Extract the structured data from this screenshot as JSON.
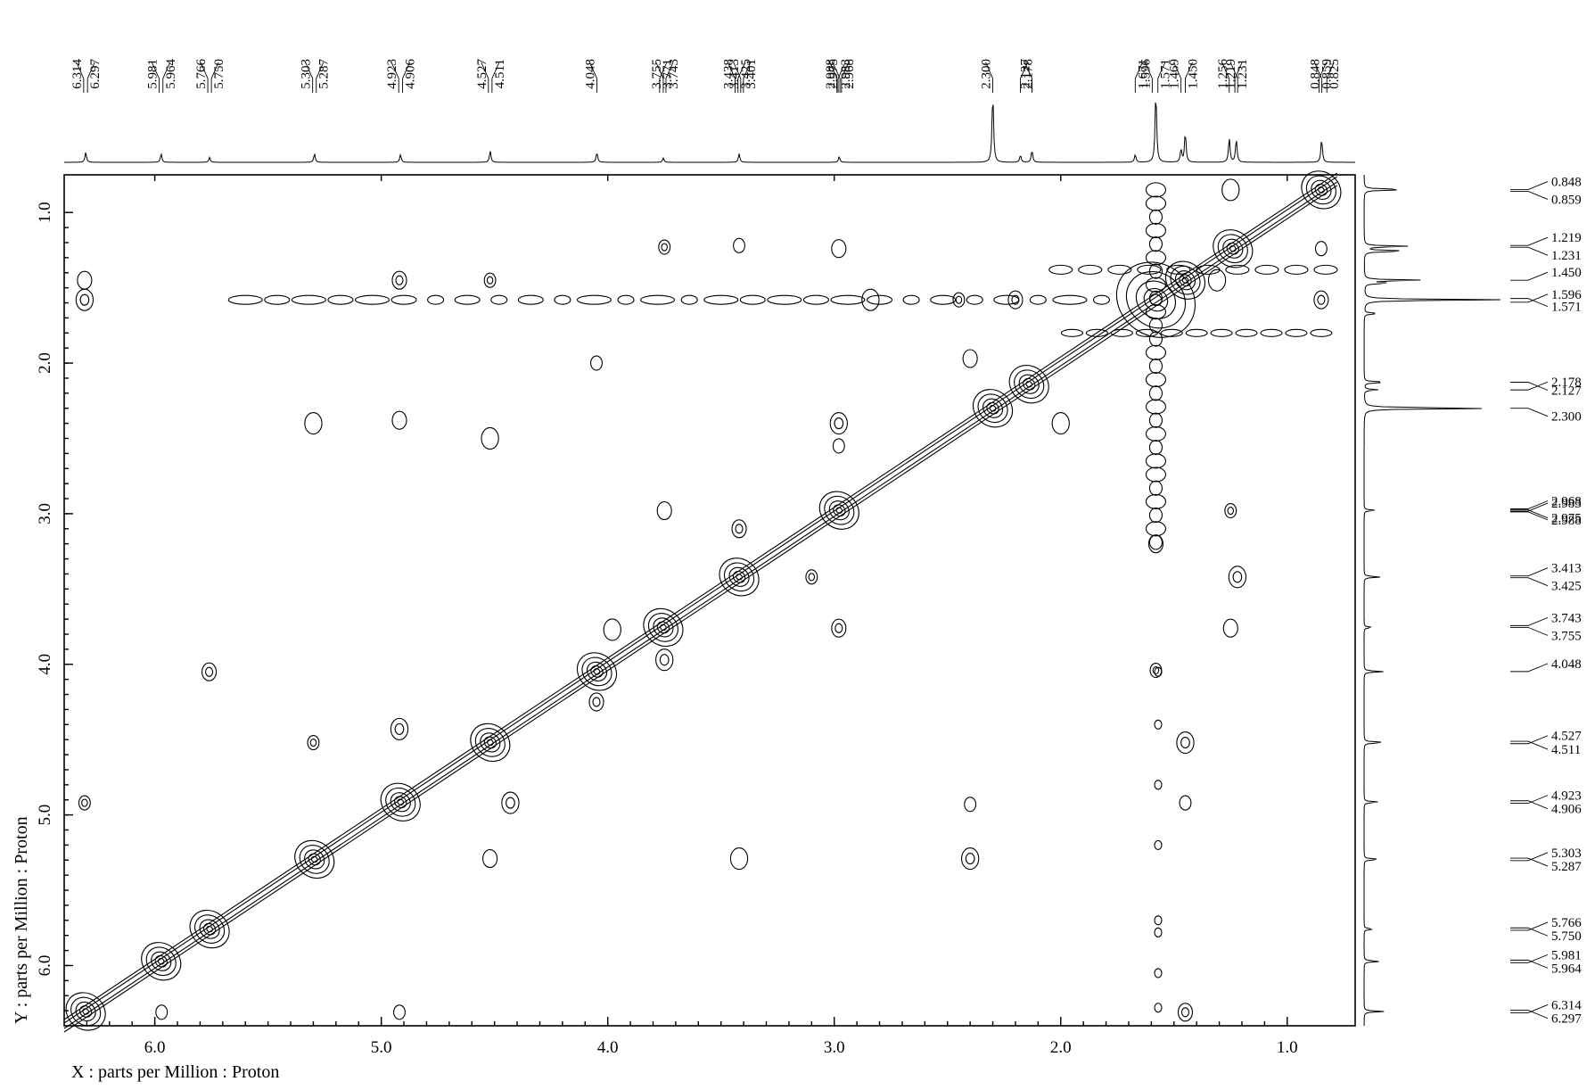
{
  "chart_data": {
    "type": "contour",
    "x_label": "X : parts per Million : Proton",
    "y_label": "Y : parts per Million : Proton",
    "xlim": [
      6.4,
      0.7
    ],
    "ylim": [
      0.75,
      6.4
    ],
    "x_ticks": [
      {
        "value": 6.0,
        "label": "6.0"
      },
      {
        "value": 5.0,
        "label": "5.0"
      },
      {
        "value": 4.0,
        "label": "4.0"
      },
      {
        "value": 3.0,
        "label": "3.0"
      },
      {
        "value": 2.0,
        "label": "2.0"
      },
      {
        "value": 1.0,
        "label": "1.0"
      }
    ],
    "y_ticks": [
      {
        "value": 1.0,
        "label": "1.0"
      },
      {
        "value": 2.0,
        "label": "2.0"
      },
      {
        "value": 3.0,
        "label": "3.0"
      },
      {
        "value": 4.0,
        "label": "4.0"
      },
      {
        "value": 5.0,
        "label": "5.0"
      },
      {
        "value": 6.0,
        "label": "6.0"
      }
    ],
    "top_peak_labels": [
      "6.314",
      "6.297",
      "5.981",
      "5.964",
      "5.766",
      "5.750",
      "5.303",
      "5.287",
      "4.923",
      "4.906",
      "4.527",
      "4.511",
      "4.048",
      "3.771",
      "3.755",
      "3.743",
      "3.438",
      "3.425",
      "3.413",
      "3.401",
      "2.988",
      "2.983",
      "2.975",
      "2.968",
      "2.300",
      "2.178",
      "2.127",
      "1.671",
      "1.596",
      "1.571",
      "1.469",
      "1.450",
      "1.256",
      "1.231",
      "1.219",
      "0.859",
      "0.848",
      "0.825"
    ],
    "right_peak_labels": [
      "0.848",
      "0.859",
      "1.219",
      "1.231",
      "1.450",
      "1.571",
      "1.596",
      "2.127",
      "2.178",
      "2.300",
      "2.968",
      "2.975",
      "2.983",
      "2.988",
      "3.413",
      "3.425",
      "3.743",
      "3.755",
      "4.048",
      "4.511",
      "4.527",
      "4.906",
      "4.923",
      "5.287",
      "5.303",
      "5.750",
      "5.766",
      "5.964",
      "5.981",
      "6.297",
      "6.314"
    ],
    "spectrum_1d": [
      {
        "shift": 6.305,
        "height": 0.14
      },
      {
        "shift": 5.972,
        "height": 0.12
      },
      {
        "shift": 5.758,
        "height": 0.07
      },
      {
        "shift": 5.295,
        "height": 0.12
      },
      {
        "shift": 4.915,
        "height": 0.11
      },
      {
        "shift": 4.519,
        "height": 0.16
      },
      {
        "shift": 4.048,
        "height": 0.14
      },
      {
        "shift": 3.755,
        "height": 0.06
      },
      {
        "shift": 3.42,
        "height": 0.12
      },
      {
        "shift": 2.978,
        "height": 0.08
      },
      {
        "shift": 2.3,
        "height": 0.97
      },
      {
        "shift": 2.178,
        "height": 0.1
      },
      {
        "shift": 2.127,
        "height": 0.17
      },
      {
        "shift": 1.671,
        "height": 0.11
      },
      {
        "shift": 1.58,
        "height": 1.0
      },
      {
        "shift": 1.469,
        "height": 0.18
      },
      {
        "shift": 1.45,
        "height": 0.42
      },
      {
        "shift": 1.256,
        "height": 0.34
      },
      {
        "shift": 1.225,
        "height": 0.33
      },
      {
        "shift": 0.848,
        "height": 0.33
      }
    ],
    "diagonal_peaks": [
      6.305,
      5.972,
      5.758,
      5.295,
      4.915,
      4.519,
      4.048,
      3.755,
      3.42,
      2.978,
      2.3,
      2.14,
      1.58,
      1.45,
      1.24,
      0.85
    ],
    "cross_peaks": [
      {
        "x": 6.31,
        "y": 4.92
      },
      {
        "x": 6.31,
        "y": 1.45
      },
      {
        "x": 6.31,
        "y": 1.58
      },
      {
        "x": 5.97,
        "y": 6.31
      },
      {
        "x": 5.76,
        "y": 4.05
      },
      {
        "x": 5.3,
        "y": 2.4
      },
      {
        "x": 5.3,
        "y": 4.52
      },
      {
        "x": 4.92,
        "y": 2.38
      },
      {
        "x": 4.92,
        "y": 4.43
      },
      {
        "x": 4.92,
        "y": 6.31
      },
      {
        "x": 4.92,
        "y": 1.45
      },
      {
        "x": 4.52,
        "y": 2.5
      },
      {
        "x": 4.52,
        "y": 1.45
      },
      {
        "x": 4.52,
        "y": 5.29
      },
      {
        "x": 4.43,
        "y": 4.92
      },
      {
        "x": 4.05,
        "y": 2.0
      },
      {
        "x": 4.05,
        "y": 4.25
      },
      {
        "x": 3.98,
        "y": 3.77
      },
      {
        "x": 3.75,
        "y": 1.23
      },
      {
        "x": 3.75,
        "y": 2.98
      },
      {
        "x": 3.75,
        "y": 3.97
      },
      {
        "x": 3.42,
        "y": 1.22
      },
      {
        "x": 3.42,
        "y": 3.1
      },
      {
        "x": 3.42,
        "y": 5.29
      },
      {
        "x": 3.1,
        "y": 3.42
      },
      {
        "x": 2.98,
        "y": 1.24
      },
      {
        "x": 2.98,
        "y": 2.4
      },
      {
        "x": 2.98,
        "y": 2.55
      },
      {
        "x": 2.98,
        "y": 3.76
      },
      {
        "x": 2.84,
        "y": 1.58
      },
      {
        "x": 2.45,
        "y": 1.58
      },
      {
        "x": 2.4,
        "y": 1.97
      },
      {
        "x": 2.4,
        "y": 5.29
      },
      {
        "x": 2.4,
        "y": 4.93
      },
      {
        "x": 2.2,
        "y": 1.58
      },
      {
        "x": 2.0,
        "y": 2.4
      },
      {
        "x": 1.58,
        "y": 4.04
      },
      {
        "x": 1.58,
        "y": 3.2
      },
      {
        "x": 1.45,
        "y": 4.52
      },
      {
        "x": 1.45,
        "y": 4.92
      },
      {
        "x": 1.45,
        "y": 6.31
      },
      {
        "x": 1.25,
        "y": 0.85
      },
      {
        "x": 1.25,
        "y": 2.98
      },
      {
        "x": 1.25,
        "y": 3.76
      },
      {
        "x": 1.22,
        "y": 3.42
      },
      {
        "x": 0.85,
        "y": 1.24
      },
      {
        "x": 0.85,
        "y": 1.58
      },
      {
        "x": 1.31,
        "y": 1.45
      }
    ]
  }
}
